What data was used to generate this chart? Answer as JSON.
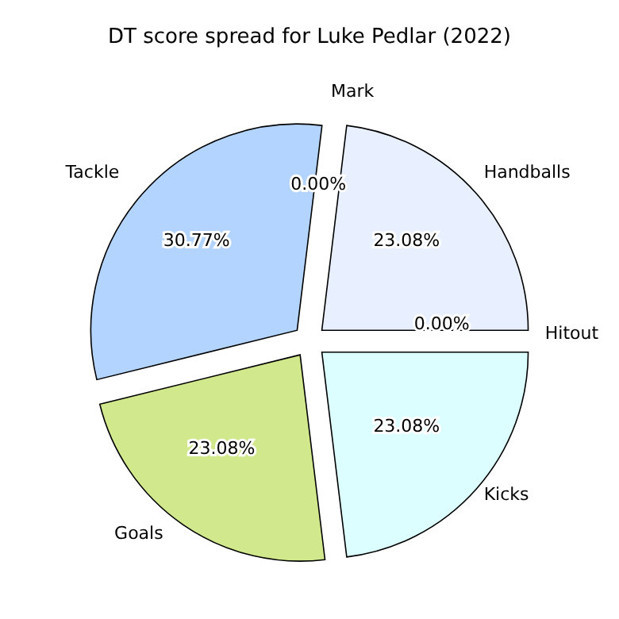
{
  "chart_data": {
    "type": "pie",
    "title": "DT score spread for Luke Pedlar (2022)",
    "categories": [
      "Handballs",
      "Mark",
      "Tackle",
      "Goals",
      "Kicks",
      "Hitout"
    ],
    "values": [
      23.08,
      0.0,
      30.77,
      23.08,
      23.08,
      0.0
    ],
    "colors": [
      "#e8f0ff",
      "#ffe0e0",
      "#b3d4ff",
      "#d1e98c",
      "#dcfeff",
      "#ffd9b3"
    ],
    "value_labels": [
      "23.08%",
      "0.00%",
      "30.77%",
      "23.08%",
      "23.08%",
      "0.00%"
    ]
  }
}
